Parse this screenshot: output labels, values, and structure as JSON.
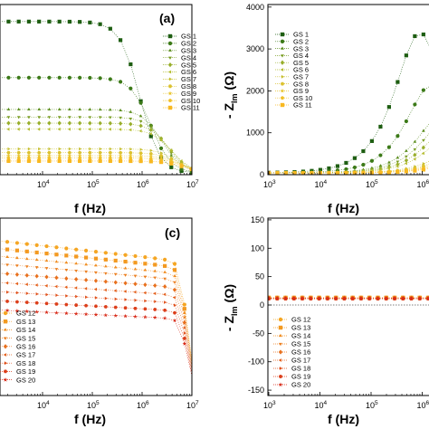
{
  "figure": {
    "panels": [
      {
        "id": "a",
        "label": "(a)",
        "xlabel": "f (Hz)",
        "ylabel": "",
        "x_scale": "log",
        "xlim": [
          1000,
          10000000
        ],
        "x_ticks": [
          {
            "value": 10000,
            "base": "10",
            "exp": "4"
          },
          {
            "value": 100000,
            "base": "10",
            "exp": "5"
          },
          {
            "value": 1000000,
            "base": "10",
            "exp": "6"
          },
          {
            "value": 10000000,
            "base": "10",
            "exp": "7"
          }
        ],
        "ylim": [
          0,
          1.1
        ],
        "y_ticks": [],
        "legend": [
          "GS 1",
          "GS 2",
          "GS 3",
          "GS 4",
          "GS 5",
          "GS 6",
          "GS 7",
          "GS 8",
          "GS 9",
          "GS 10",
          "GS 11"
        ]
      },
      {
        "id": "b",
        "label": "",
        "xlabel": "f (Hz)",
        "ylabel_main": "- Z",
        "ylabel_sub": "Im",
        "ylabel_unit": "(Ω)",
        "x_scale": "log",
        "xlim": [
          1000,
          10000000
        ],
        "x_ticks": [
          {
            "value": 1000,
            "base": "10",
            "exp": "3"
          },
          {
            "value": 10000,
            "base": "10",
            "exp": "4"
          },
          {
            "value": 100000,
            "base": "10",
            "exp": "5"
          },
          {
            "value": 1000000,
            "base": "10",
            "exp": "6"
          }
        ],
        "ylim": [
          0,
          4000
        ],
        "y_ticks": [
          {
            "value": 0,
            "text": "0"
          },
          {
            "value": 1000,
            "text": "1000"
          },
          {
            "value": 2000,
            "text": "2000"
          },
          {
            "value": 3000,
            "text": "3000"
          },
          {
            "value": 4000,
            "text": "4000"
          }
        ],
        "legend": [
          "GS 1",
          "GS 2",
          "GS 3",
          "GS 4",
          "GS 5",
          "GS 6",
          "GS 7",
          "GS 8",
          "GS 9",
          "GS 10",
          "GS 11"
        ]
      },
      {
        "id": "c",
        "label": "(c)",
        "xlabel": "f (Hz)",
        "ylabel": "",
        "x_scale": "log",
        "xlim": [
          1000,
          10000000
        ],
        "x_ticks": [
          {
            "value": 10000,
            "base": "10",
            "exp": "4"
          },
          {
            "value": 100000,
            "base": "10",
            "exp": "5"
          },
          {
            "value": 1000000,
            "base": "10",
            "exp": "6"
          },
          {
            "value": 10000000,
            "base": "10",
            "exp": "7"
          }
        ],
        "ylim": [
          0,
          1.1
        ],
        "y_ticks": [],
        "legend": [
          "GS 12",
          "GS 13",
          "GS 14",
          "GS 15",
          "GS 16",
          "GS 17",
          "GS 18",
          "GS 19",
          "GS 20"
        ]
      },
      {
        "id": "d",
        "label": "",
        "xlabel": "f (Hz)",
        "ylabel_main": "- Z",
        "ylabel_sub": "Im",
        "ylabel_unit": "(Ω)",
        "x_scale": "log",
        "xlim": [
          1000,
          10000000
        ],
        "x_ticks": [
          {
            "value": 1000,
            "base": "10",
            "exp": "3"
          },
          {
            "value": 10000,
            "base": "10",
            "exp": "4"
          },
          {
            "value": 100000,
            "base": "10",
            "exp": "5"
          },
          {
            "value": 1000000,
            "base": "10",
            "exp": "6"
          }
        ],
        "ylim": [
          -150,
          150
        ],
        "y_ticks": [
          {
            "value": 150,
            "text": "150"
          },
          {
            "value": 100,
            "text": "100"
          },
          {
            "value": 50,
            "text": "50"
          },
          {
            "value": 0,
            "text": "0"
          },
          {
            "value": -50,
            "text": "-50"
          },
          {
            "value": -100,
            "text": "-100"
          },
          {
            "value": -150,
            "text": "-150"
          }
        ],
        "legend": [
          "GS 12",
          "GS 13",
          "GS 14",
          "GS 15",
          "GS 16",
          "GS 17",
          "GS 18",
          "GS 19",
          "GS 20"
        ]
      }
    ]
  },
  "chart_data": [
    {
      "type": "scatter",
      "panel": "a",
      "title": "",
      "xlabel": "f (Hz)",
      "ylabel": "",
      "x_scale": "log",
      "xlim": [
        1000,
        10000000
      ],
      "ylim": [
        0,
        1.1
      ],
      "grid": false,
      "legend_position": "right",
      "series": [
        {
          "name": "GS 1",
          "color": "#1e5e12",
          "marker": "square",
          "plateau": 1.0,
          "fc": 900000,
          "order": 1.1
        },
        {
          "name": "GS 2",
          "color": "#3c7a18",
          "marker": "circle",
          "plateau": 0.63,
          "fc": 1500000,
          "order": 1.1
        },
        {
          "name": "GS 3",
          "color": "#5c8e1e",
          "marker": "triangle-up",
          "plateau": 0.42,
          "fc": 2500000,
          "order": 1.1
        },
        {
          "name": "GS 4",
          "color": "#7a9e24",
          "marker": "triangle-down",
          "plateau": 0.37,
          "fc": 3000000,
          "order": 1.1
        },
        {
          "name": "GS 5",
          "color": "#98ae2a",
          "marker": "diamond",
          "plateau": 0.33,
          "fc": 3500000,
          "order": 1.1
        },
        {
          "name": "GS 6",
          "color": "#b4bc2e",
          "marker": "triangle-left",
          "plateau": 0.29,
          "fc": 4000000,
          "order": 1.1
        },
        {
          "name": "GS 7",
          "color": "#c8c032",
          "marker": "triangle-right",
          "plateau": 0.16,
          "fc": 5000000,
          "order": 1.1
        },
        {
          "name": "GS 8",
          "color": "#dcc230",
          "marker": "hexagon",
          "plateau": 0.135,
          "fc": 5500000,
          "order": 1.1
        },
        {
          "name": "GS 9",
          "color": "#e8c42a",
          "marker": "star",
          "plateau": 0.115,
          "fc": 6000000,
          "order": 1.1
        },
        {
          "name": "GS 10",
          "color": "#f0c026",
          "marker": "pentagon",
          "plateau": 0.1,
          "fc": 6500000,
          "order": 1.1
        },
        {
          "name": "GS 11",
          "color": "#f8b820",
          "marker": "square",
          "plateau": 0.08,
          "fc": 7000000,
          "order": 1.1
        }
      ]
    },
    {
      "type": "scatter",
      "panel": "b",
      "title": "",
      "xlabel": "f (Hz)",
      "ylabel": "- Z Im (Ω)",
      "x_scale": "log",
      "xlim": [
        1000,
        10000000
      ],
      "ylim": [
        0,
        4000
      ],
      "grid": false,
      "legend_position": "top-left",
      "series": [
        {
          "name": "GS 1",
          "color": "#1e5e12",
          "marker": "square",
          "peak": 3350,
          "fpeak": 900000
        },
        {
          "name": "GS 2",
          "color": "#3c7a18",
          "marker": "circle",
          "peak": 2100,
          "fpeak": 1500000
        },
        {
          "name": "GS 3",
          "color": "#5c8e1e",
          "marker": "triangle-up",
          "peak": 1400,
          "fpeak": 2500000
        },
        {
          "name": "GS 4",
          "color": "#7a9e24",
          "marker": "triangle-down",
          "peak": 1250,
          "fpeak": 3000000
        },
        {
          "name": "GS 5",
          "color": "#98ae2a",
          "marker": "diamond",
          "peak": 1100,
          "fpeak": 3500000
        },
        {
          "name": "GS 6",
          "color": "#b4bc2e",
          "marker": "triangle-left",
          "peak": 950,
          "fpeak": 4000000
        },
        {
          "name": "GS 7",
          "color": "#c8c032",
          "marker": "triangle-right",
          "peak": 550,
          "fpeak": 5000000
        },
        {
          "name": "GS 8",
          "color": "#dcc230",
          "marker": "hexagon",
          "peak": 450,
          "fpeak": 5500000
        },
        {
          "name": "GS 9",
          "color": "#e8c42a",
          "marker": "star",
          "peak": 380,
          "fpeak": 6000000
        },
        {
          "name": "GS 10",
          "color": "#f0c026",
          "marker": "pentagon",
          "peak": 330,
          "fpeak": 6500000
        },
        {
          "name": "GS 11",
          "color": "#f8b820",
          "marker": "square",
          "peak": 270,
          "fpeak": 7000000
        }
      ]
    },
    {
      "type": "scatter",
      "panel": "c",
      "title": "",
      "xlabel": "f (Hz)",
      "ylabel": "",
      "x_scale": "log",
      "xlim": [
        1000,
        10000000
      ],
      "ylim": [
        0,
        1.1
      ],
      "grid": false,
      "legend_position": "bottom-left",
      "series": [
        {
          "name": "GS 12",
          "color": "#f5a623",
          "marker": "circle",
          "start": 1.0,
          "mid": 0.86,
          "fc": 8000000
        },
        {
          "name": "GS 13",
          "color": "#f39a21",
          "marker": "square",
          "start": 0.95,
          "mid": 0.82,
          "fc": 8000000
        },
        {
          "name": "GS 14",
          "color": "#f08c1f",
          "marker": "triangle-up",
          "start": 0.9,
          "mid": 0.78,
          "fc": 8000000
        },
        {
          "name": "GS 15",
          "color": "#ec7e1e",
          "marker": "triangle-down",
          "start": 0.85,
          "mid": 0.74,
          "fc": 8000000
        },
        {
          "name": "GS 16",
          "color": "#e8701d",
          "marker": "diamond",
          "start": 0.79,
          "mid": 0.69,
          "fc": 8000000
        },
        {
          "name": "GS 17",
          "color": "#e4601c",
          "marker": "triangle-left",
          "start": 0.73,
          "mid": 0.64,
          "fc": 8000000
        },
        {
          "name": "GS 18",
          "color": "#e0501b",
          "marker": "triangle-right",
          "start": 0.67,
          "mid": 0.59,
          "fc": 8000000
        },
        {
          "name": "GS 19",
          "color": "#dc3e1a",
          "marker": "hexagon",
          "start": 0.61,
          "mid": 0.54,
          "fc": 8000000
        },
        {
          "name": "GS 20",
          "color": "#d82a18",
          "marker": "star",
          "start": 0.55,
          "mid": 0.49,
          "fc": 8000000
        }
      ]
    },
    {
      "type": "scatter",
      "panel": "d",
      "title": "",
      "xlabel": "f (Hz)",
      "ylabel": "- Z Im (Ω)",
      "x_scale": "log",
      "xlim": [
        1000,
        10000000
      ],
      "ylim": [
        -150,
        150
      ],
      "grid": false,
      "legend_position": "bottom-left",
      "series": [
        {
          "name": "GS 12",
          "color": "#f5a623",
          "marker": "circle",
          "level": 12
        },
        {
          "name": "GS 13",
          "color": "#f39a21",
          "marker": "square",
          "level": 12
        },
        {
          "name": "GS 14",
          "color": "#f08c1f",
          "marker": "triangle-up",
          "level": 12
        },
        {
          "name": "GS 15",
          "color": "#ec7e1e",
          "marker": "triangle-down",
          "level": 12
        },
        {
          "name": "GS 16",
          "color": "#e8701d",
          "marker": "diamond",
          "level": 12
        },
        {
          "name": "GS 17",
          "color": "#e4601c",
          "marker": "triangle-left",
          "level": 12
        },
        {
          "name": "GS 18",
          "color": "#e0501b",
          "marker": "triangle-right",
          "level": 12
        },
        {
          "name": "GS 19",
          "color": "#dc3e1a",
          "marker": "hexagon",
          "level": 12
        },
        {
          "name": "GS 20",
          "color": "#d82a18",
          "marker": "star",
          "level": 12
        }
      ]
    }
  ]
}
